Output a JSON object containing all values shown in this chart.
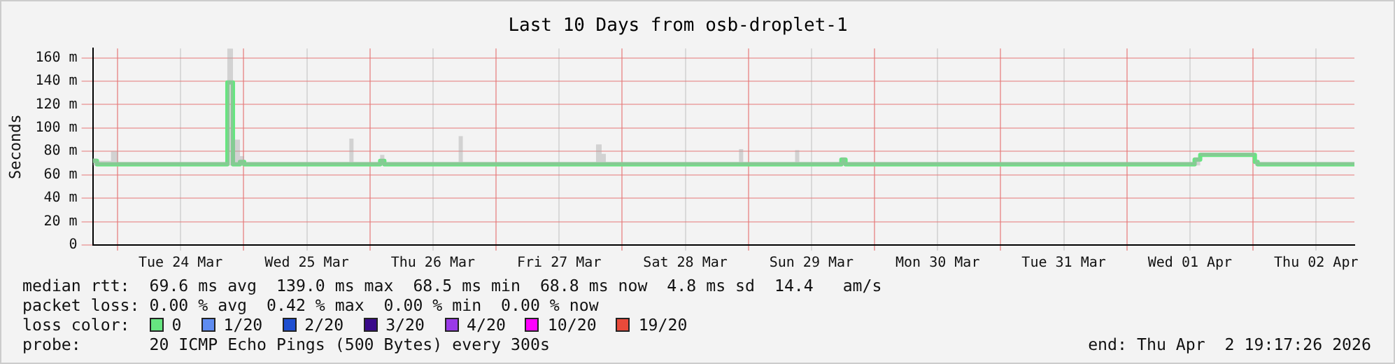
{
  "chart_data": {
    "type": "step",
    "title": "Last 10 Days from osb-droplet-1",
    "ylabel": "Seconds",
    "x": [
      "2026-03-23T19:17",
      "2026-03-23T20:05",
      "2026-03-23T22:45",
      "2026-03-24T00:05",
      "2026-03-24T20:37",
      "2026-03-24T20:53",
      "2026-03-24T21:41",
      "2026-03-24T21:57",
      "2026-03-24T23:17",
      "2026-03-25T00:05",
      "2026-03-25T20:05",
      "2026-03-25T20:53",
      "2026-03-26T01:57",
      "2026-03-26T02:45",
      "2026-03-26T16:53",
      "2026-03-26T17:41",
      "2026-03-27T19:01",
      "2026-03-27T20:05",
      "2026-03-27T20:53",
      "2026-03-28T22:13",
      "2026-03-28T23:01",
      "2026-03-29T08:53",
      "2026-03-29T09:41",
      "2026-03-29T17:41",
      "2026-03-29T18:29",
      "2026-04-01T12:21",
      "2026-04-01T12:53",
      "2026-04-01T13:57",
      "2026-04-01T23:33",
      "2026-04-02T00:21",
      "2026-04-02T00:53",
      "2026-04-02T19:17"
    ],
    "series": [
      {
        "name": "0",
        "color": "#66e680",
        "values": [
          72,
          69,
          69,
          69,
          69,
          139,
          139,
          69,
          71,
          69,
          69,
          69,
          72,
          69,
          69,
          69,
          69,
          69,
          69,
          69,
          69,
          69,
          69,
          73,
          69,
          69,
          73,
          77,
          77,
          71,
          69,
          69
        ],
        "upper": [
          74,
          72,
          80,
          71,
          71,
          168,
          168,
          90,
          76,
          71,
          91,
          71,
          77,
          71,
          93,
          71,
          86,
          78,
          71,
          82,
          71,
          81,
          71,
          75,
          71,
          71,
          75,
          79,
          79,
          73,
          71,
          76
        ],
        "lower": [
          68,
          68,
          68,
          68,
          68,
          68,
          68,
          68,
          68,
          68,
          68,
          68,
          68,
          68,
          68,
          68,
          68,
          68,
          68,
          68,
          68,
          68,
          68,
          68,
          68,
          68,
          68,
          76,
          76,
          68,
          68,
          68
        ]
      },
      {
        "name": "1/20",
        "color": "#5f8cf0",
        "values": [
          null,
          null,
          null,
          null,
          null,
          null,
          null,
          null,
          null,
          null,
          null,
          null,
          null,
          null,
          null,
          null,
          null,
          null,
          null,
          null,
          null,
          null,
          null,
          null,
          null,
          null,
          null,
          null,
          null,
          null,
          null,
          null
        ]
      },
      {
        "name": "2/20",
        "color": "#1f4fd0",
        "values": [
          null,
          null,
          null,
          null,
          null,
          null,
          null,
          null,
          null,
          null,
          null,
          null,
          null,
          null,
          null,
          null,
          null,
          null,
          null,
          null,
          null,
          null,
          null,
          null,
          null,
          null,
          null,
          null,
          null,
          null,
          null,
          null
        ]
      },
      {
        "name": "3/20",
        "color": "#3a0a8a",
        "values": [
          null,
          null,
          null,
          null,
          null,
          null,
          null,
          null,
          null,
          null,
          null,
          null,
          null,
          null,
          null,
          null,
          null,
          null,
          null,
          null,
          null,
          null,
          null,
          null,
          null,
          null,
          null,
          null,
          null,
          null,
          null,
          null
        ]
      },
      {
        "name": "4/20",
        "color": "#9a3ae8",
        "values": [
          null,
          null,
          null,
          null,
          null,
          null,
          null,
          null,
          null,
          null,
          null,
          null,
          null,
          null,
          null,
          null,
          null,
          null,
          null,
          null,
          null,
          null,
          null,
          null,
          null,
          null,
          null,
          null,
          null,
          null,
          null,
          null
        ]
      },
      {
        "name": "10/20",
        "color": "#ff00ff",
        "values": [
          null,
          null,
          null,
          null,
          null,
          null,
          null,
          null,
          null,
          null,
          null,
          null,
          null,
          null,
          null,
          null,
          null,
          null,
          null,
          null,
          null,
          null,
          null,
          null,
          null,
          null,
          null,
          null,
          null,
          null,
          null,
          null
        ]
      },
      {
        "name": "19/20",
        "color": "#e84a3a",
        "values": [
          null,
          null,
          null,
          null,
          null,
          null,
          null,
          null,
          null,
          null,
          null,
          null,
          null,
          null,
          null,
          null,
          null,
          null,
          null,
          null,
          null,
          null,
          null,
          null,
          null,
          null,
          null,
          null,
          null,
          null,
          null,
          null
        ]
      }
    ],
    "xlim": [
      "2026-03-23T19:17",
      "2026-04-02T19:17"
    ],
    "xticks": [
      {
        "value": "2026-03-24T00:00",
        "label": null
      },
      {
        "value": "2026-03-24T12:00",
        "label": "Tue 24 Mar"
      },
      {
        "value": "2026-03-25T00:00",
        "label": null
      },
      {
        "value": "2026-03-25T12:00",
        "label": "Wed 25 Mar"
      },
      {
        "value": "2026-03-26T00:00",
        "label": null
      },
      {
        "value": "2026-03-26T12:00",
        "label": "Thu 26 Mar"
      },
      {
        "value": "2026-03-27T00:00",
        "label": null
      },
      {
        "value": "2026-03-27T12:00",
        "label": "Fri 27 Mar"
      },
      {
        "value": "2026-03-28T00:00",
        "label": null
      },
      {
        "value": "2026-03-28T12:00",
        "label": "Sat 28 Mar"
      },
      {
        "value": "2026-03-29T00:00",
        "label": null
      },
      {
        "value": "2026-03-29T12:00",
        "label": "Sun 29 Mar"
      },
      {
        "value": "2026-03-30T00:00",
        "label": null
      },
      {
        "value": "2026-03-30T12:00",
        "label": "Mon 30 Mar"
      },
      {
        "value": "2026-03-31T00:00",
        "label": null
      },
      {
        "value": "2026-03-31T12:00",
        "label": "Tue 31 Mar"
      },
      {
        "value": "2026-04-01T00:00",
        "label": null
      },
      {
        "value": "2026-04-01T12:00",
        "label": "Wed 01 Apr"
      },
      {
        "value": "2026-04-02T00:00",
        "label": null
      },
      {
        "value": "2026-04-02T12:00",
        "label": "Thu 02 Apr"
      }
    ],
    "ylim": [
      0,
      168
    ],
    "yticks": [
      0,
      {
        "value": 20,
        "label": "20 m"
      },
      {
        "value": 40,
        "label": "40 m"
      },
      {
        "value": 60,
        "label": "60 m"
      },
      {
        "value": 80,
        "label": "80 m"
      },
      {
        "value": 100,
        "label": "100 m"
      },
      {
        "value": 120,
        "label": "120 m"
      },
      {
        "value": 140,
        "label": "140 m"
      },
      {
        "value": 160,
        "label": "160 m"
      }
    ],
    "grid": true,
    "legend": "bottom left",
    "legend_title": "loss color:",
    "marker": "none",
    "line_style": "solid",
    "annotations": [
      "median rtt:  69.6 ms avg  139.0 ms max  68.5 ms min  68.8 ms now  4.8 ms sd  14.4   am/s",
      "packet loss: 0.00 % avg  0.42 % max  0.00 % min  0.00 % now",
      "probe:       20 ICMP Echo Pings (500 Bytes) every 300s",
      "end: Thu Apr  2 19:17:26 2026"
    ]
  }
}
